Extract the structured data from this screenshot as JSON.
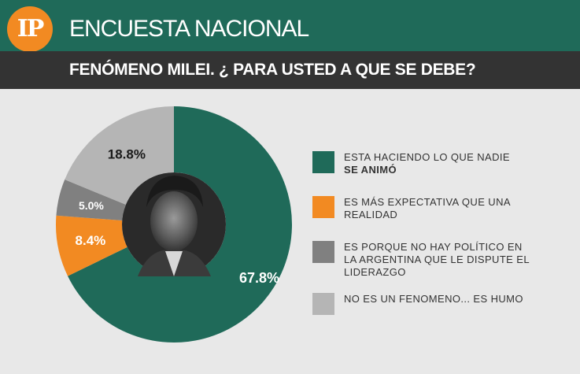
{
  "header": {
    "logo": "IP",
    "title": "ENCUESTA NACIONAL"
  },
  "question": "FENÓMENO MILEI. ¿ PARA USTED A QUE SE DEBE?",
  "colors": {
    "header_bg": "#1f6a59",
    "logo": "#f28a22",
    "subbar": "#333333",
    "background": "#e8e8e8"
  },
  "chart_data": {
    "type": "pie",
    "donut": true,
    "slices": [
      {
        "label": "ESTA HACIENDO LO QUE NADIE SE ANIMÓ",
        "value": 67.8,
        "display": "67.8%",
        "color": "#1f6a59",
        "text_color": "#ffffff"
      },
      {
        "label": "ES MÁS EXPECTATIVA QUE UNA REALIDAD",
        "value": 8.4,
        "display": "8.4%",
        "color": "#f28a22",
        "text_color": "#ffffff"
      },
      {
        "label": "ES PORQUE NO HAY POLÍTICO EN LA ARGENTINA QUE LE DISPUTE EL LIDERAZGO",
        "value": 5.0,
        "display": "5.0%",
        "color": "#808080",
        "text_color": "#ffffff"
      },
      {
        "label": "NO ES UN FENOMENO... ES HUMO",
        "value": 18.8,
        "display": "18.8%",
        "color": "#b5b5b5",
        "text_color": "#1a1a1a"
      }
    ]
  },
  "legend": [
    {
      "line1": "ESTA HACIENDO LO QUE NADIE",
      "line2_bold": "SE ANIMÓ",
      "color": "#1f6a59"
    },
    {
      "text": "ES MÁS EXPECTATIVA QUE UNA REALIDAD",
      "color": "#f28a22"
    },
    {
      "text": "ES PORQUE NO HAY POLÍTICO EN LA ARGENTINA QUE LE DISPUTE EL LIDERAZGO",
      "color": "#808080"
    },
    {
      "text": "NO ES UN FENOMENO... ES HUMO",
      "color": "#b5b5b5"
    }
  ]
}
